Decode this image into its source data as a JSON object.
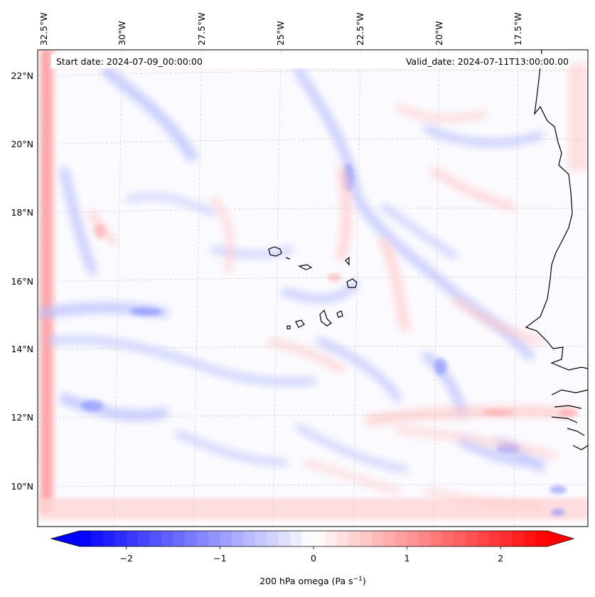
{
  "map": {
    "start_date_label": "Start date: 2024-07-09_00:00:00",
    "valid_date_label": "Valid_date: 2024-07-11T13:00:00.00",
    "lon_ticks": [
      "32.5°W",
      "30°W",
      "27.5°W",
      "25°W",
      "22.5°W",
      "20°W",
      "17.5°W"
    ],
    "lon_values": [
      -32.5,
      -30,
      -27.5,
      -25,
      -22.5,
      -20,
      -17.5
    ],
    "lat_ticks": [
      "22°N",
      "20°N",
      "18°N",
      "16°N",
      "14°N",
      "12°N",
      "10°N"
    ],
    "lat_values": [
      22,
      20,
      18,
      16,
      14,
      12,
      10
    ],
    "extent": {
      "lon_min": -33.0,
      "lon_max": -15.6,
      "lat_min": 8.9,
      "lat_max": 22.8
    }
  },
  "colorbar": {
    "ticks": [
      "−2",
      "−1",
      "0",
      "1",
      "2"
    ],
    "tick_values": [
      -2,
      -1,
      0,
      1,
      2
    ],
    "range": [
      -2.5,
      2.5
    ],
    "label_main": "200 hPa omega (Pa s",
    "label_sup": "−1",
    "label_close": ")",
    "low_color": "#0000ff",
    "mid_color": "#ffffff",
    "high_color": "#ff0000"
  }
}
